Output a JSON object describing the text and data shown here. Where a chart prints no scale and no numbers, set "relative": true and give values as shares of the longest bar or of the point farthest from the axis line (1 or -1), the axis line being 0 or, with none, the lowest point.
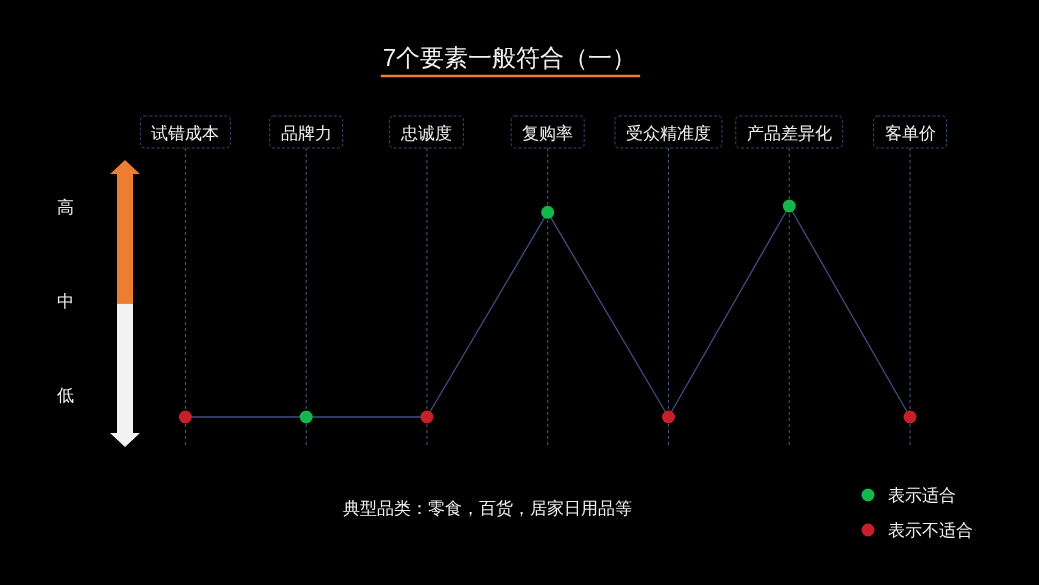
{
  "chart_data": {
    "type": "line",
    "title": "7个要素一般符合（一）",
    "categories": [
      "试错成本",
      "品牌力",
      "忠诚度",
      "复购率",
      "受众精准度",
      "产品差异化",
      "客单价"
    ],
    "relative": true,
    "series": [
      {
        "color": "#3e5080",
        "marker": "none",
        "values": [
          0,
          0,
          0,
          0.97,
          0,
          1,
          0
        ]
      },
      {
        "type": "scatter",
        "name": "表示适合",
        "color": "#12b84c",
        "values": [
          null,
          0,
          null,
          0.97,
          null,
          1,
          null
        ]
      },
      {
        "type": "scatter",
        "name": "表示不适合",
        "color": "#c8202a",
        "values": [
          0,
          null,
          0,
          null,
          0,
          null,
          0
        ]
      }
    ],
    "grid": "x",
    "marker": "circle",
    "legend": "bottom right",
    "annotations": [
      "高",
      "中",
      "低",
      "典型品类：零食，百货，居家日用品等"
    ]
  }
}
